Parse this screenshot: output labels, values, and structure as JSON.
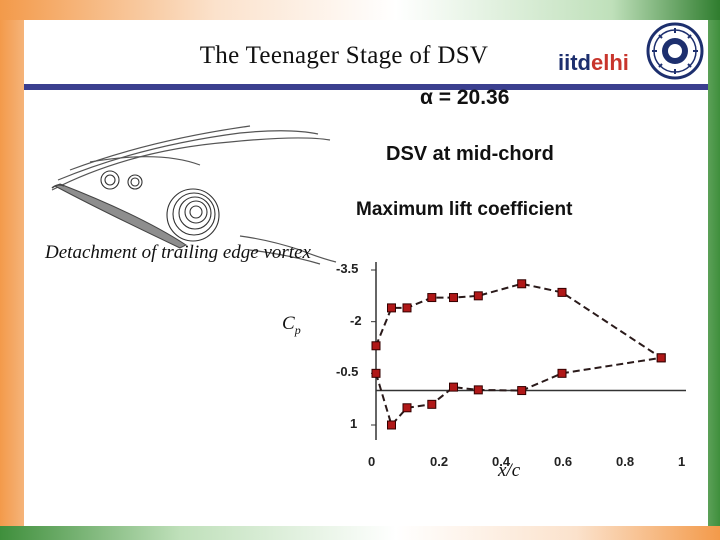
{
  "slide": {
    "title": "The Teenager Stage of DSV",
    "logo": {
      "part1": "iitd",
      "part2": "elhi"
    }
  },
  "figure": {
    "sketch_label": "Detachment of trailing edge vortex",
    "angle_label": "α = 20.36",
    "dsv_label": "DSV at mid-chord",
    "lift_label": "Maximum lift coefficient"
  },
  "chart_data": {
    "type": "line",
    "xlabel": "x/c",
    "ylabel": "Cp",
    "x_ticks": [
      "0",
      "0.2",
      "0.4",
      "0.6",
      "0.8",
      "1"
    ],
    "y_ticks": [
      "-3.5",
      "-2",
      "-0.5",
      "1"
    ],
    "xlim": [
      0,
      1
    ],
    "ylim": [
      1.5,
      -3.5
    ],
    "series": [
      {
        "x": [
          0.0,
          0.05,
          0.1,
          0.18,
          0.25,
          0.33,
          0.47,
          0.6,
          0.92
        ],
        "y": [
          -1.3,
          -2.4,
          -2.4,
          -2.7,
          -2.7,
          -2.75,
          -3.1,
          -2.85,
          -0.95
        ]
      },
      {
        "x": [
          0.0,
          0.05,
          0.1,
          0.18,
          0.25,
          0.33,
          0.47,
          0.6,
          0.92
        ],
        "y": [
          -0.5,
          1.0,
          0.5,
          0.4,
          -0.1,
          -0.02,
          0.0,
          -0.5,
          -0.95
        ]
      }
    ],
    "colors": {
      "marker": "#b01818",
      "line": "#2a1a1a"
    }
  }
}
